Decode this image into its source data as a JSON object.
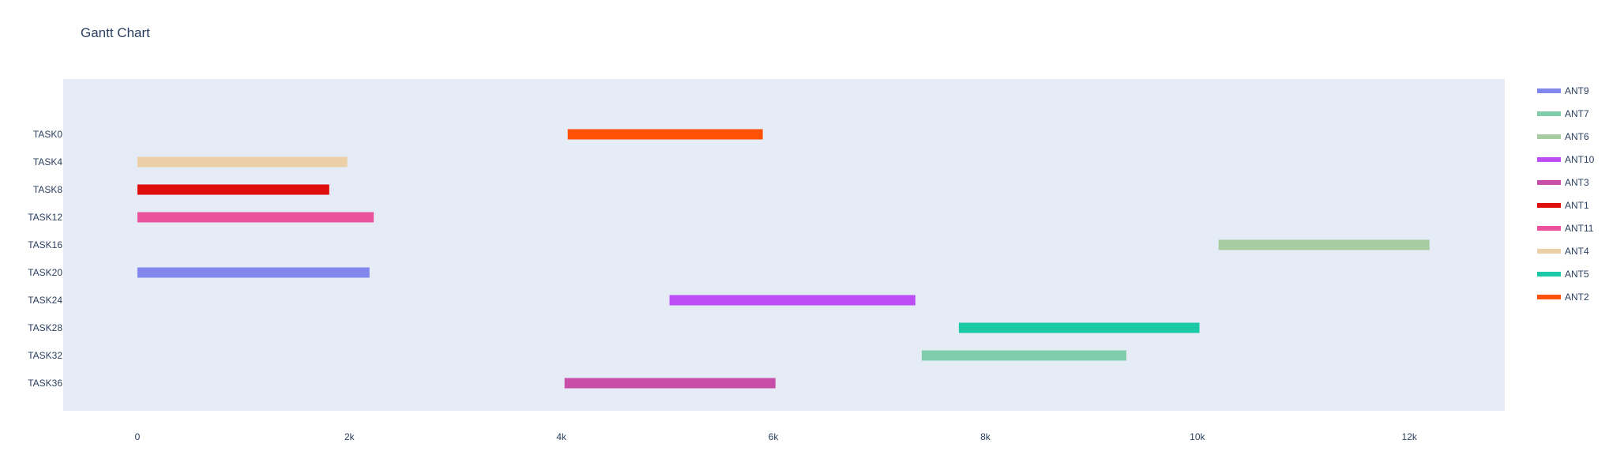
{
  "title": "Gantt Chart",
  "chart_data": {
    "type": "gantt",
    "title": "Gantt Chart",
    "xlabel": "",
    "ylabel": "",
    "xlim": [
      -700,
      12900
    ],
    "x_ticks": [
      0,
      2000,
      4000,
      6000,
      8000,
      10000,
      12000
    ],
    "x_tick_labels": [
      "0",
      "2k",
      "4k",
      "6k",
      "8k",
      "10k",
      "12k"
    ],
    "grid": false,
    "legend_position": "right",
    "tasks": [
      {
        "task": "TASK0",
        "resource": "ANT2",
        "start": 4060,
        "end": 5900
      },
      {
        "task": "TASK4",
        "resource": "ANT4",
        "start": 0,
        "end": 1980
      },
      {
        "task": "TASK8",
        "resource": "ANT1",
        "start": 0,
        "end": 1810
      },
      {
        "task": "TASK12",
        "resource": "ANT11",
        "start": 0,
        "end": 2230
      },
      {
        "task": "TASK16",
        "resource": "ANT6",
        "start": 10200,
        "end": 12190
      },
      {
        "task": "TASK20",
        "resource": "ANT9",
        "start": 0,
        "end": 2190
      },
      {
        "task": "TASK24",
        "resource": "ANT10",
        "start": 5020,
        "end": 7340
      },
      {
        "task": "TASK28",
        "resource": "ANT5",
        "start": 7750,
        "end": 10020
      },
      {
        "task": "TASK32",
        "resource": "ANT7",
        "start": 7400,
        "end": 9330
      },
      {
        "task": "TASK36",
        "resource": "ANT3",
        "start": 4030,
        "end": 6020
      }
    ],
    "legend": [
      {
        "name": "ANT9",
        "color": "#8187ed"
      },
      {
        "name": "ANT7",
        "color": "#7fcdab"
      },
      {
        "name": "ANT6",
        "color": "#a8cca2"
      },
      {
        "name": "ANT10",
        "color": "#bd4ef5"
      },
      {
        "name": "ANT3",
        "color": "#c94ea8"
      },
      {
        "name": "ANT1",
        "color": "#e00d0d"
      },
      {
        "name": "ANT11",
        "color": "#eb539f"
      },
      {
        "name": "ANT4",
        "color": "#eccfa6"
      },
      {
        "name": "ANT5",
        "color": "#1cc9a6"
      },
      {
        "name": "ANT2",
        "color": "#ff5107"
      }
    ],
    "plot_background": "#e5ecf6"
  }
}
